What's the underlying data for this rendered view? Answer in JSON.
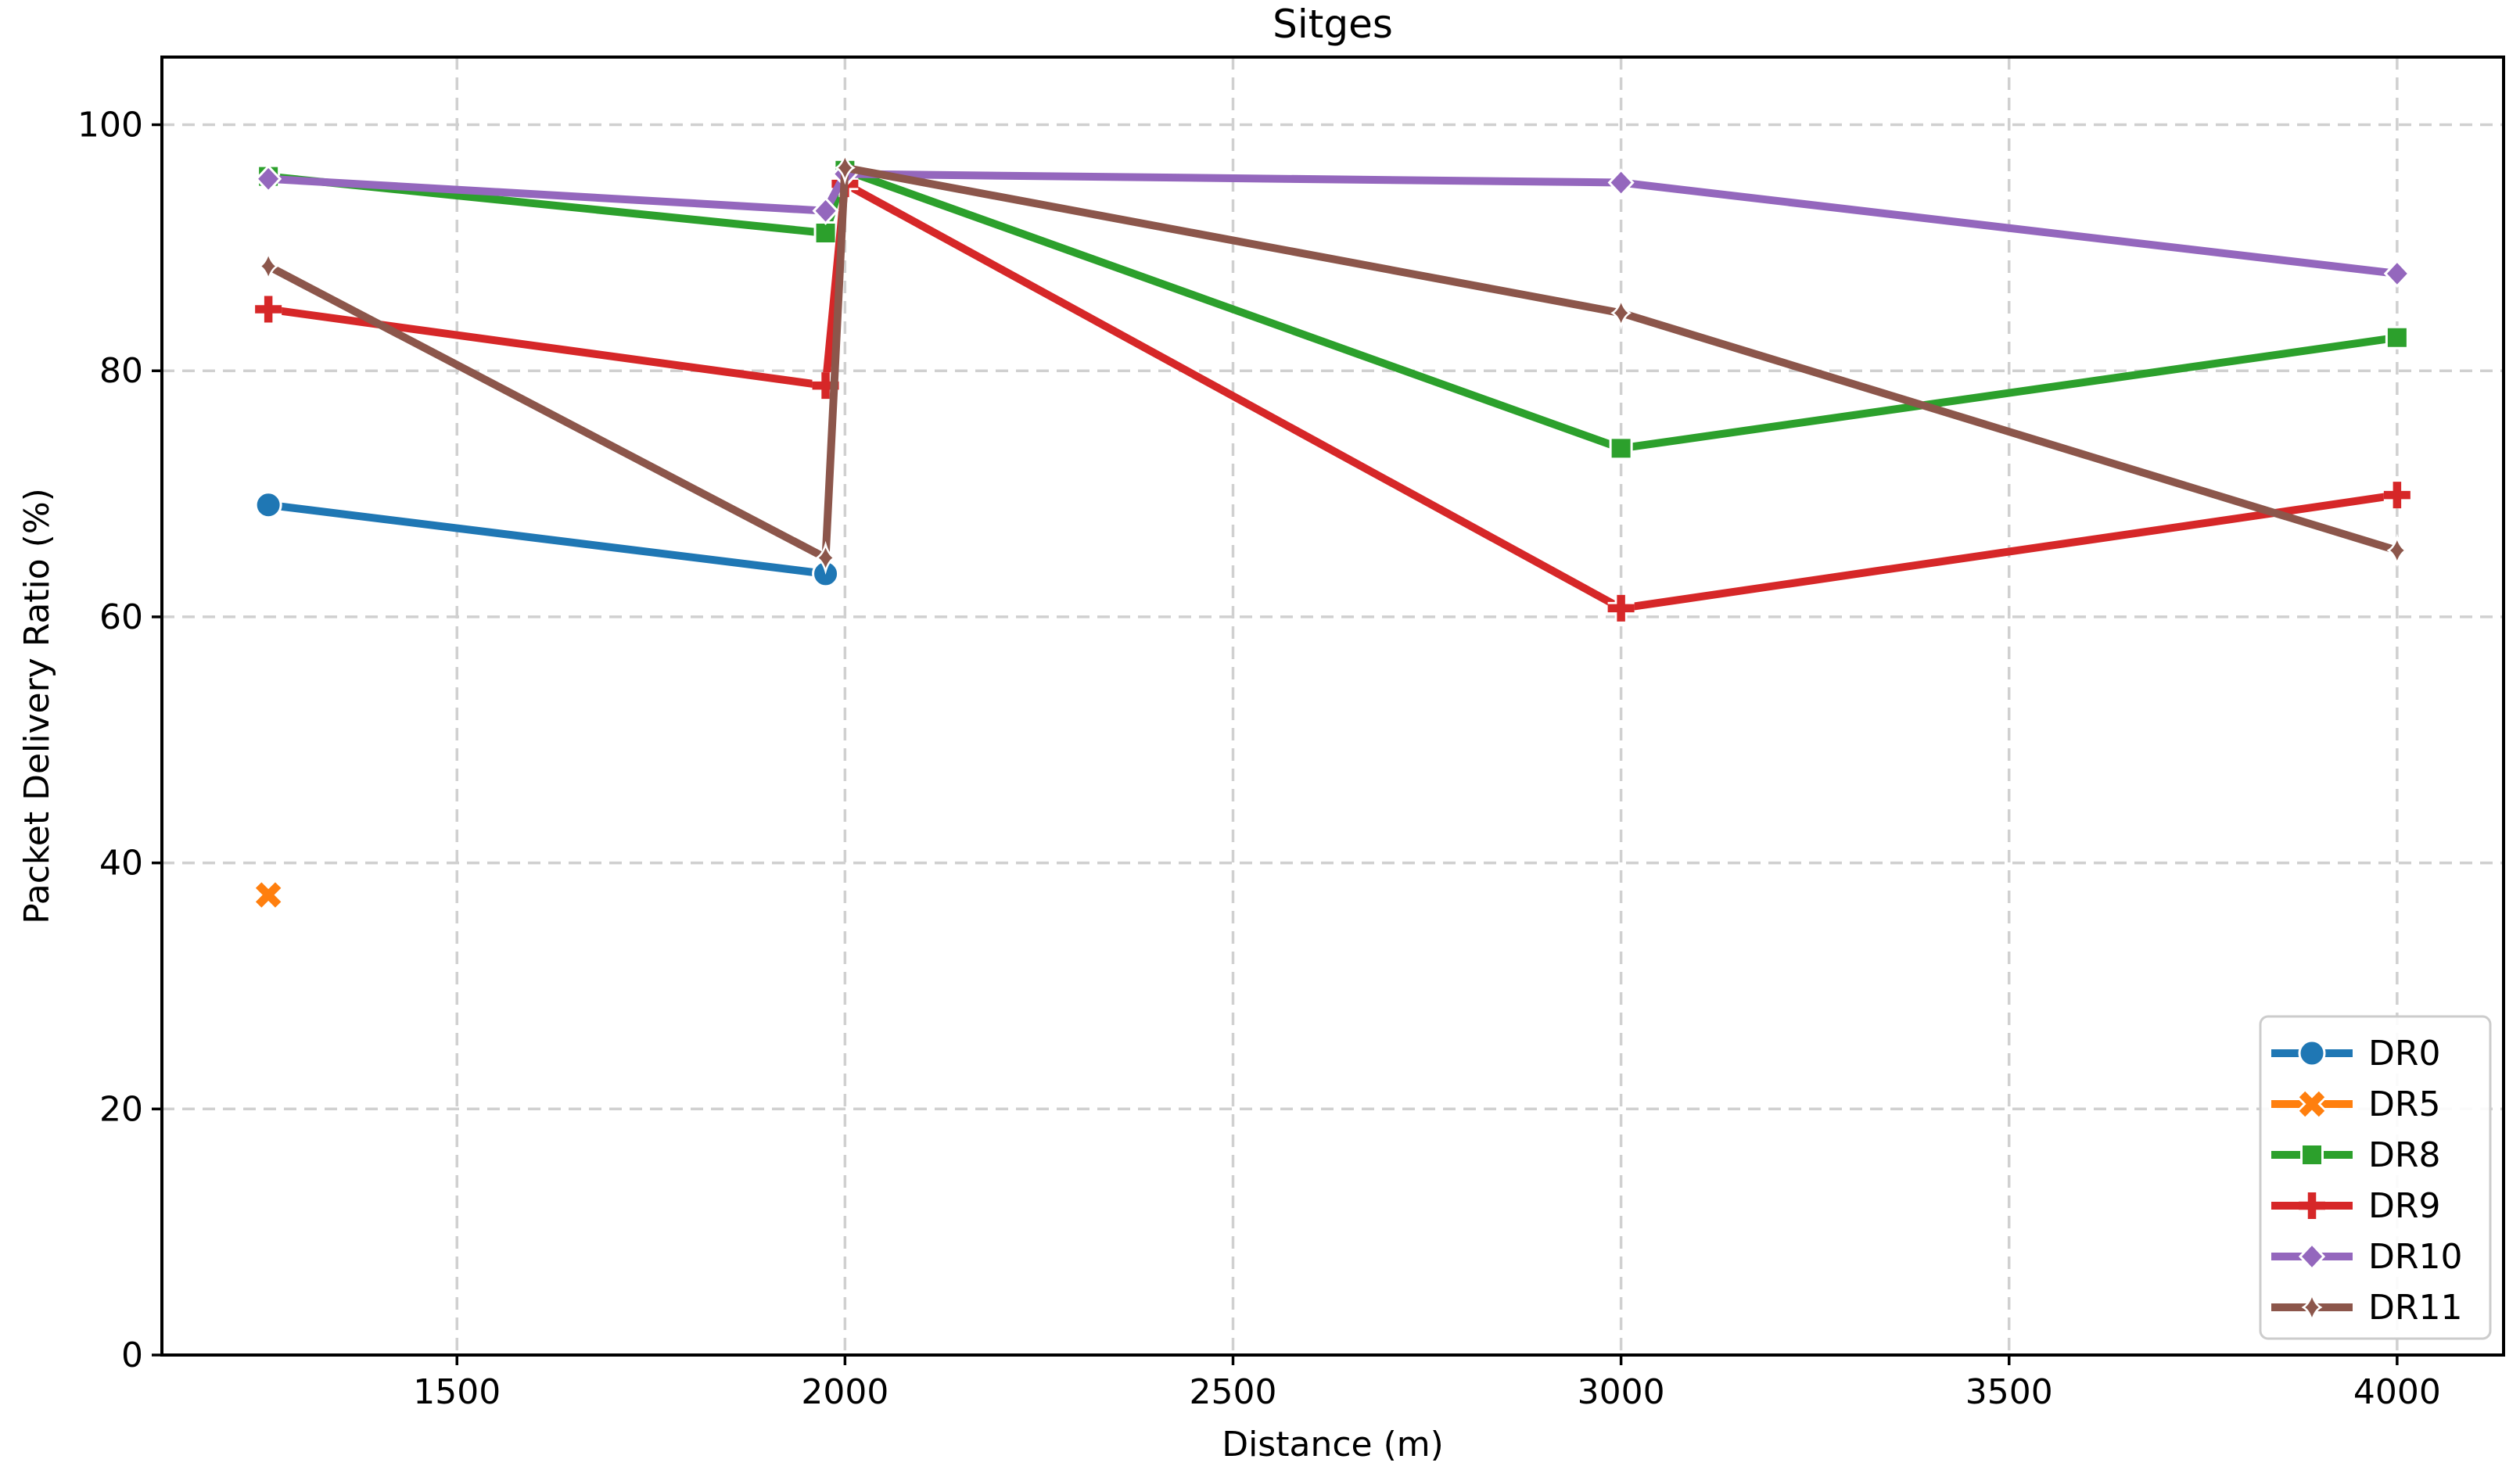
{
  "title": "Sitges",
  "chart_data": {
    "type": "line",
    "title": "Sitges",
    "xlabel": "Distance (m)",
    "ylabel": "Packet Delivery Ratio (%)",
    "xlim": [
      1119.8,
      4137.2
    ],
    "ylim": [
      0,
      105.5
    ],
    "x_ticks": [
      1500,
      2000,
      2500,
      3000,
      3500,
      4000
    ],
    "y_ticks": [
      0,
      20,
      40,
      60,
      80,
      100
    ],
    "grid": "dashed-both-axes",
    "grid_color": "#d0d0d0",
    "legend_position": "lower right",
    "series": [
      {
        "name": "DR0",
        "color": "#1f77b4",
        "marker": "circle",
        "x": [
          1257,
          1975
        ],
        "y": [
          69.1,
          63.5
        ]
      },
      {
        "name": "DR5",
        "color": "#ff7f0e",
        "marker": "x",
        "x": [
          1257
        ],
        "y": [
          37.4
        ]
      },
      {
        "name": "DR8",
        "color": "#2ca02c",
        "marker": "square",
        "x": [
          1257,
          1975,
          2000,
          3000,
          4000
        ],
        "y": [
          95.8,
          91.2,
          96.3,
          73.7,
          82.7
        ]
      },
      {
        "name": "DR9",
        "color": "#d62728",
        "marker": "plus",
        "x": [
          1257,
          1975,
          2000,
          3000,
          4000
        ],
        "y": [
          85.0,
          78.8,
          95.2,
          60.7,
          69.9
        ]
      },
      {
        "name": "DR10",
        "color": "#9467bd",
        "marker": "diamond",
        "x": [
          1257,
          1975,
          2000,
          3000,
          4000
        ],
        "y": [
          95.6,
          93.0,
          96.0,
          95.3,
          87.9
        ]
      },
      {
        "name": "DR11",
        "color": "#8c564b",
        "marker": "thin-diamond",
        "x": [
          1257,
          1975,
          2000,
          3000,
          4000
        ],
        "y": [
          88.5,
          64.8,
          96.5,
          84.7,
          65.4
        ]
      }
    ]
  }
}
